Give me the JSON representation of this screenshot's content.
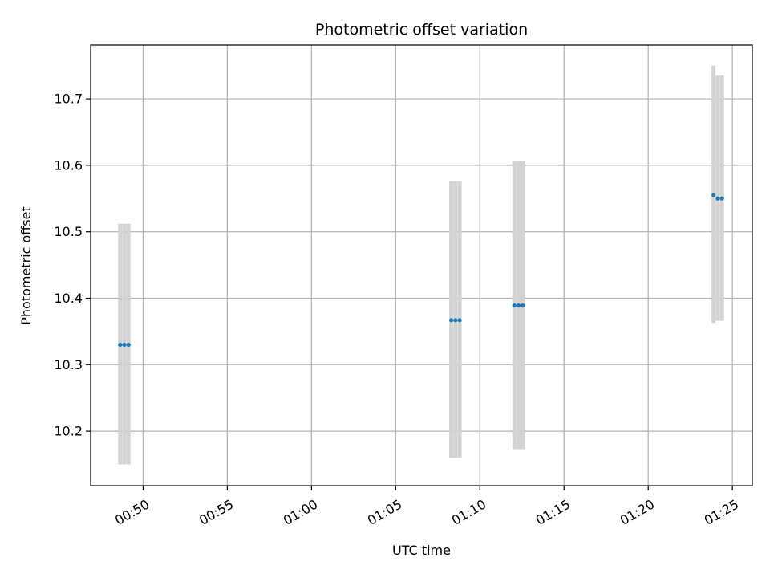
{
  "chart_data": {
    "type": "scatter",
    "title": "Photometric offset variation",
    "xlabel": "UTC time",
    "ylabel": "Photometric offset",
    "grid": true,
    "x_axis_kind": "time",
    "xlim": [
      "00:46:53",
      "01:26:11"
    ],
    "ylim": [
      0.118,
      0.781
    ],
    "ylim_offset": 10.0,
    "xticks": [
      "00:50",
      "00:55",
      "01:00",
      "01:05",
      "01:10",
      "01:15",
      "01:20",
      "01:25"
    ],
    "yticks": [
      10.2,
      10.3,
      10.4,
      10.5,
      10.6,
      10.7
    ],
    "marker_color": "#1f77b4",
    "errorbar_color": "#d3d3d3",
    "series": [
      {
        "points": [
          {
            "time": "00:48:38",
            "y": 10.33,
            "ylow": 10.15,
            "yhigh": 10.512
          },
          {
            "time": "00:48:53",
            "y": 10.33,
            "ylow": 10.15,
            "yhigh": 10.512
          },
          {
            "time": "00:49:08",
            "y": 10.33,
            "ylow": 10.15,
            "yhigh": 10.512
          },
          {
            "time": "01:08:18",
            "y": 10.367,
            "ylow": 10.16,
            "yhigh": 10.576
          },
          {
            "time": "01:08:33",
            "y": 10.367,
            "ylow": 10.16,
            "yhigh": 10.576
          },
          {
            "time": "01:08:48",
            "y": 10.367,
            "ylow": 10.16,
            "yhigh": 10.576
          },
          {
            "time": "01:12:03",
            "y": 10.389,
            "ylow": 10.173,
            "yhigh": 10.607
          },
          {
            "time": "01:12:18",
            "y": 10.389,
            "ylow": 10.173,
            "yhigh": 10.607
          },
          {
            "time": "01:12:33",
            "y": 10.389,
            "ylow": 10.173,
            "yhigh": 10.607
          },
          {
            "time": "01:23:53",
            "y": 10.555,
            "ylow": 10.363,
            "yhigh": 10.75
          },
          {
            "time": "01:24:08",
            "y": 10.55,
            "ylow": 10.366,
            "yhigh": 10.735
          },
          {
            "time": "01:24:23",
            "y": 10.55,
            "ylow": 10.366,
            "yhigh": 10.735
          }
        ]
      }
    ]
  }
}
